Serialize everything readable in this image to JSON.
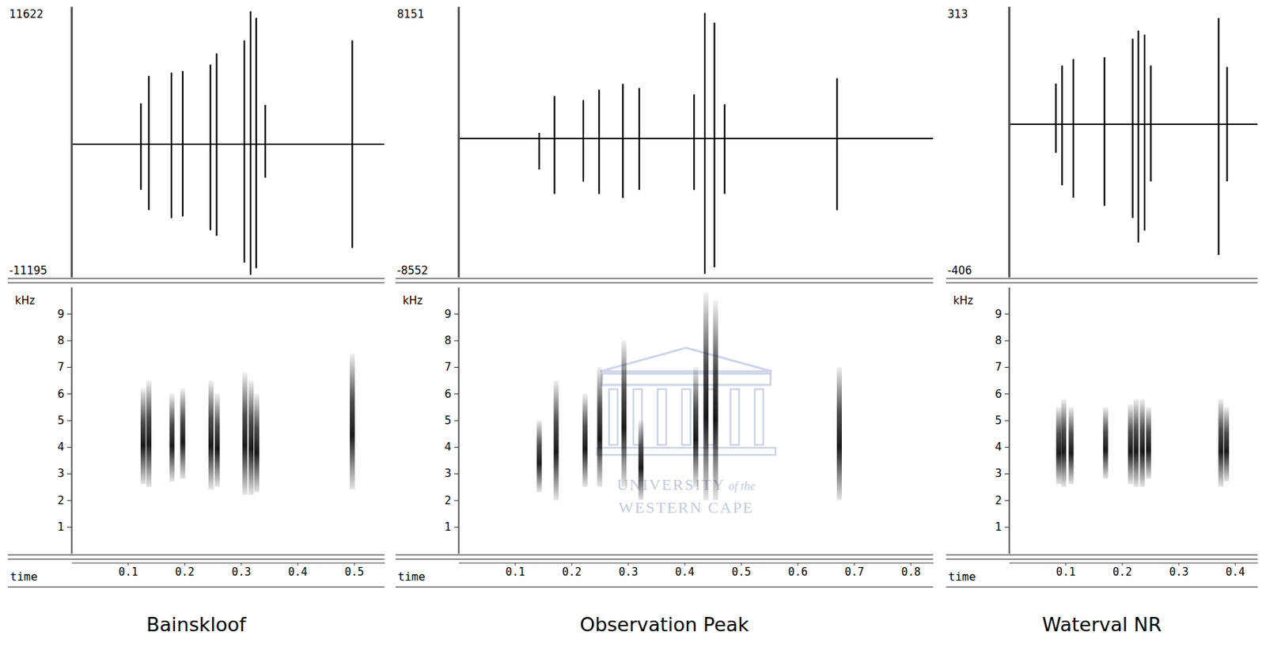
{
  "chart_data": [
    {
      "type": "oscillogram",
      "title": "Bainskloof",
      "xlabel": "time",
      "xlim": [
        0,
        0.554
      ],
      "xticks": [
        0.1,
        0.2,
        0.3,
        0.4,
        0.5
      ],
      "ylim": [
        -11195,
        11622
      ],
      "yticks": [
        -11195,
        11622
      ],
      "pulses": {
        "x": [
          0.123,
          0.137,
          0.177,
          0.197,
          0.246,
          0.257,
          0.306,
          0.317,
          0.327,
          0.343,
          0.497
        ],
        "max": [
          3446,
          5761,
          6034,
          6170,
          6715,
          7668,
          8757,
          11209,
          10665,
          3310,
          8757
        ],
        "min": [
          -3841,
          -5543,
          -6224,
          -6088,
          -7246,
          -7722,
          -9970,
          -11000,
          -10447,
          -2819,
          -8744
        ]
      },
      "spectrogram": {
        "type": "spectrogram",
        "ylabel": "kHz",
        "ylim": [
          0,
          10
        ],
        "yticks": [
          1,
          2,
          3,
          4,
          5,
          6,
          7,
          8,
          9
        ],
        "x": [
          0.127,
          0.137,
          0.178,
          0.197,
          0.247,
          0.258,
          0.307,
          0.318,
          0.328,
          0.497
        ],
        "low": [
          2.6,
          2.5,
          2.7,
          2.8,
          2.4,
          2.5,
          2.2,
          2.2,
          2.3,
          2.4
        ],
        "high": [
          6.2,
          6.5,
          6.0,
          6.2,
          6.5,
          6.0,
          6.8,
          6.5,
          6.0,
          7.5
        ]
      }
    },
    {
      "type": "oscillogram",
      "title": "Observation Peak",
      "xlabel": "time",
      "xlim": [
        0,
        0.84
      ],
      "xticks": [
        0.1,
        0.2,
        0.3,
        0.4,
        0.5,
        0.6,
        0.7,
        0.8
      ],
      "ylim": [
        -8552,
        8151
      ],
      "yticks": [
        -8552,
        8151
      ],
      "pulses": {
        "x": [
          0.143,
          0.17,
          0.221,
          0.249,
          0.291,
          0.32,
          0.417,
          0.436,
          0.453,
          0.471,
          0.67
        ],
        "max": [
          352,
          2616,
          2364,
          3018,
          3370,
          3119,
          2716,
          7746,
          7143,
          2113,
          3722
        ],
        "min": [
          -1911,
          -3420,
          -2666,
          -3420,
          -3672,
          -3169,
          -3169,
          -8350,
          -7947,
          -3420,
          -4426
        ]
      },
      "spectrogram": {
        "type": "spectrogram",
        "ylabel": "kHz",
        "ylim": [
          0,
          10
        ],
        "yticks": [
          1,
          2,
          3,
          4,
          5,
          6,
          7,
          8,
          9
        ],
        "x": [
          0.143,
          0.173,
          0.224,
          0.25,
          0.293,
          0.323,
          0.42,
          0.438,
          0.455,
          0.674
        ],
        "low": [
          2.3,
          2.0,
          2.5,
          2.5,
          2.5,
          2.0,
          2.5,
          2.0,
          2.0,
          2.0
        ],
        "high": [
          5.0,
          6.5,
          6.0,
          7.0,
          8.0,
          5.0,
          7.0,
          9.8,
          9.5,
          7.0
        ]
      }
    },
    {
      "type": "oscillogram",
      "title": "Waterval NR",
      "xlabel": "time",
      "xlim": [
        0,
        0.44
      ],
      "xticks": [
        0.1,
        0.2,
        0.3,
        0.4
      ],
      "ylim": [
        -406,
        313
      ],
      "yticks": [
        -406,
        313
      ],
      "pulses": {
        "x": [
          0.083,
          0.094,
          0.114,
          0.169,
          0.219,
          0.229,
          0.24,
          0.251,
          0.371,
          0.386
        ],
        "max": [
          108,
          156,
          173,
          178,
          227,
          249,
          238,
          156,
          282,
          152
        ],
        "min": [
          -76,
          -162,
          -195,
          -217,
          -249,
          -314,
          -282,
          -152,
          -347,
          -152
        ]
      },
      "spectrogram": {
        "type": "spectrogram",
        "ylabel": "kHz",
        "ylim": [
          0,
          10
        ],
        "yticks": [
          1,
          2,
          3,
          4,
          5,
          6,
          7,
          8,
          9
        ],
        "x": [
          0.088,
          0.097,
          0.11,
          0.171,
          0.215,
          0.225,
          0.236,
          0.247,
          0.375,
          0.385
        ],
        "low": [
          2.6,
          2.5,
          2.6,
          2.8,
          2.6,
          2.5,
          2.5,
          2.8,
          2.5,
          2.7
        ],
        "high": [
          5.5,
          5.8,
          5.5,
          5.5,
          5.6,
          5.8,
          5.8,
          5.5,
          5.8,
          5.5
        ]
      }
    }
  ],
  "watermark": [
    "UNIVERSITY",
    "of the",
    "WESTERN CAPE"
  ]
}
